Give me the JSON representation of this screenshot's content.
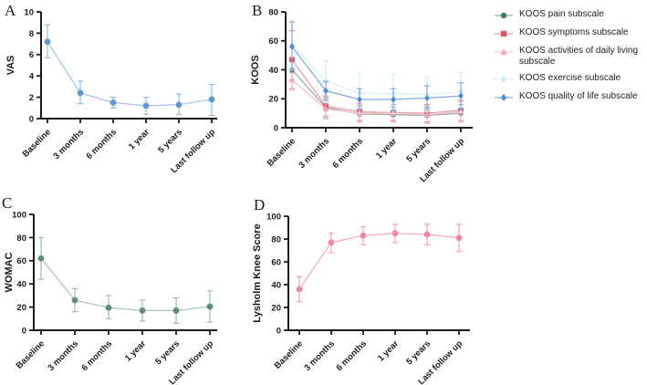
{
  "panels": {
    "a": "A",
    "b": "B",
    "c": "C",
    "d": "D"
  },
  "chart_data": [
    {
      "type": "line",
      "panel": "A",
      "ylabel": "VAS",
      "ylim": [
        0,
        10
      ],
      "ytick_step": 2,
      "grid": false,
      "categories": [
        "Baseline",
        "3 months",
        "6 months",
        "1 year",
        "5 years",
        "Last follow up"
      ],
      "series": [
        {
          "name": "VAS",
          "marker": "circle",
          "color": "#6496d2",
          "line_color": "#a5c4e8",
          "err_color": "#8fb4e0",
          "values": [
            7.2,
            2.4,
            1.5,
            1.2,
            1.3,
            1.8
          ],
          "err_lo": [
            5.7,
            1.4,
            1.0,
            0.4,
            0.4,
            0.3
          ],
          "err_hi": [
            8.8,
            3.5,
            2.0,
            2.0,
            2.3,
            3.2
          ]
        }
      ]
    },
    {
      "type": "line",
      "panel": "B",
      "ylabel": "KOOS",
      "ylim": [
        0,
        80
      ],
      "ytick_step": 20,
      "grid": false,
      "legend_position": "right",
      "categories": [
        "Baseline",
        "3 months",
        "6 months",
        "1 year",
        "5 years",
        "Last follow up"
      ],
      "series": [
        {
          "name": "KOOS pain subscale",
          "marker": "circle",
          "color": "#3f7a5c",
          "line_color": "#93ab9e",
          "err_color": "#9fbcac",
          "values": [
            40,
            14,
            9.5,
            9,
            8.5,
            10
          ],
          "err_lo": [
            33,
            7,
            4,
            4,
            3,
            4
          ],
          "err_hi": [
            47,
            21,
            15,
            14,
            14,
            16
          ]
        },
        {
          "name": "KOOS symptoms subscale",
          "marker": "square",
          "color": "#d9596b",
          "line_color": "#eb9aa6",
          "err_color": "#e88b99",
          "values": [
            47,
            15,
            11,
            10.5,
            10,
            12
          ],
          "err_lo": [
            27,
            8,
            5,
            5,
            4,
            5
          ],
          "err_hi": [
            67,
            22,
            17,
            16,
            16,
            19
          ]
        },
        {
          "name": "KOOS activities of daily living subscale",
          "marker": "triangle",
          "color": "#f2a8bc",
          "line_color": "#f6c3d0",
          "err_color": "#f3b3c5",
          "values": [
            33,
            13,
            10,
            10,
            9,
            11
          ],
          "err_lo": [
            26,
            6,
            4,
            4,
            3,
            4
          ],
          "err_hi": [
            40,
            20,
            16,
            16,
            15,
            18
          ]
        },
        {
          "name": "KOOS exercise subscale",
          "marker": "diamond",
          "color": "#cfeaf4",
          "line_color": "#dbeff7",
          "err_color": "#cfeaf4",
          "values": [
            57.5,
            32,
            24,
            23.5,
            23,
            25
          ],
          "err_lo": [
            41,
            18,
            10,
            10,
            11,
            11
          ],
          "err_hi": [
            74,
            46,
            38,
            37,
            35,
            38
          ]
        },
        {
          "name": "KOOS quality of life subscale",
          "marker": "diamond",
          "color": "#4d8ad5",
          "line_color": "#82abe0",
          "err_color": "#79a6de",
          "values": [
            56,
            25.5,
            19.5,
            19.5,
            20.5,
            22
          ],
          "err_lo": [
            38,
            19,
            13,
            12,
            13,
            13
          ],
          "err_hi": [
            73,
            32,
            27,
            27,
            29,
            31
          ]
        }
      ]
    },
    {
      "type": "line",
      "panel": "C",
      "ylabel": "WOMAC",
      "ylim": [
        0,
        100
      ],
      "ytick_step": 20,
      "grid": false,
      "categories": [
        "Baseline",
        "3 months",
        "6 months",
        "1 year",
        "5 years",
        "Last follow up"
      ],
      "series": [
        {
          "name": "WOMAC",
          "marker": "circle",
          "color": "#5f8d72",
          "line_color": "#a8c6b3",
          "err_color": "#93b8a2",
          "values": [
            62,
            26,
            19.5,
            17,
            17,
            20.5
          ],
          "err_lo": [
            44,
            16,
            10,
            8,
            6,
            7
          ],
          "err_hi": [
            80,
            36,
            30,
            26,
            28,
            34
          ]
        }
      ]
    },
    {
      "type": "line",
      "panel": "D",
      "ylabel": "Lysholm Knee Score",
      "ylim": [
        0,
        100
      ],
      "ytick_step": 20,
      "grid": false,
      "categories": [
        "Baseline",
        "3 months",
        "6 months",
        "1 year",
        "5 years",
        "Last follow up"
      ],
      "series": [
        {
          "name": "Lysholm Knee Score",
          "marker": "circle",
          "color": "#ec87a0",
          "line_color": "#f2abbc",
          "err_color": "#ef9bb0",
          "values": [
            36,
            77,
            83,
            85,
            84,
            81
          ],
          "err_lo": [
            25,
            68,
            75,
            77,
            75,
            69
          ],
          "err_hi": [
            47,
            85,
            91,
            93,
            93,
            93
          ]
        }
      ]
    }
  ],
  "legend": {
    "items": [
      {
        "label": "KOOS pain subscale",
        "marker": "circle",
        "color": "#3f7a5c",
        "line_color": "#93ab9e"
      },
      {
        "label": "KOOS symptoms subscale",
        "marker": "square",
        "color": "#d9596b",
        "line_color": "#eb9aa6"
      },
      {
        "label": "KOOS activities of daily living subscale",
        "marker": "triangle",
        "color": "#f2a8bc",
        "line_color": "#f6c3d0"
      },
      {
        "label": "KOOS exercise subscale",
        "marker": "diamond",
        "color": "#cfeaf4",
        "line_color": "#dbeff7"
      },
      {
        "label": "KOOS quality of life subscale",
        "marker": "diamond",
        "color": "#4d8ad5",
        "line_color": "#82abe0"
      }
    ]
  }
}
